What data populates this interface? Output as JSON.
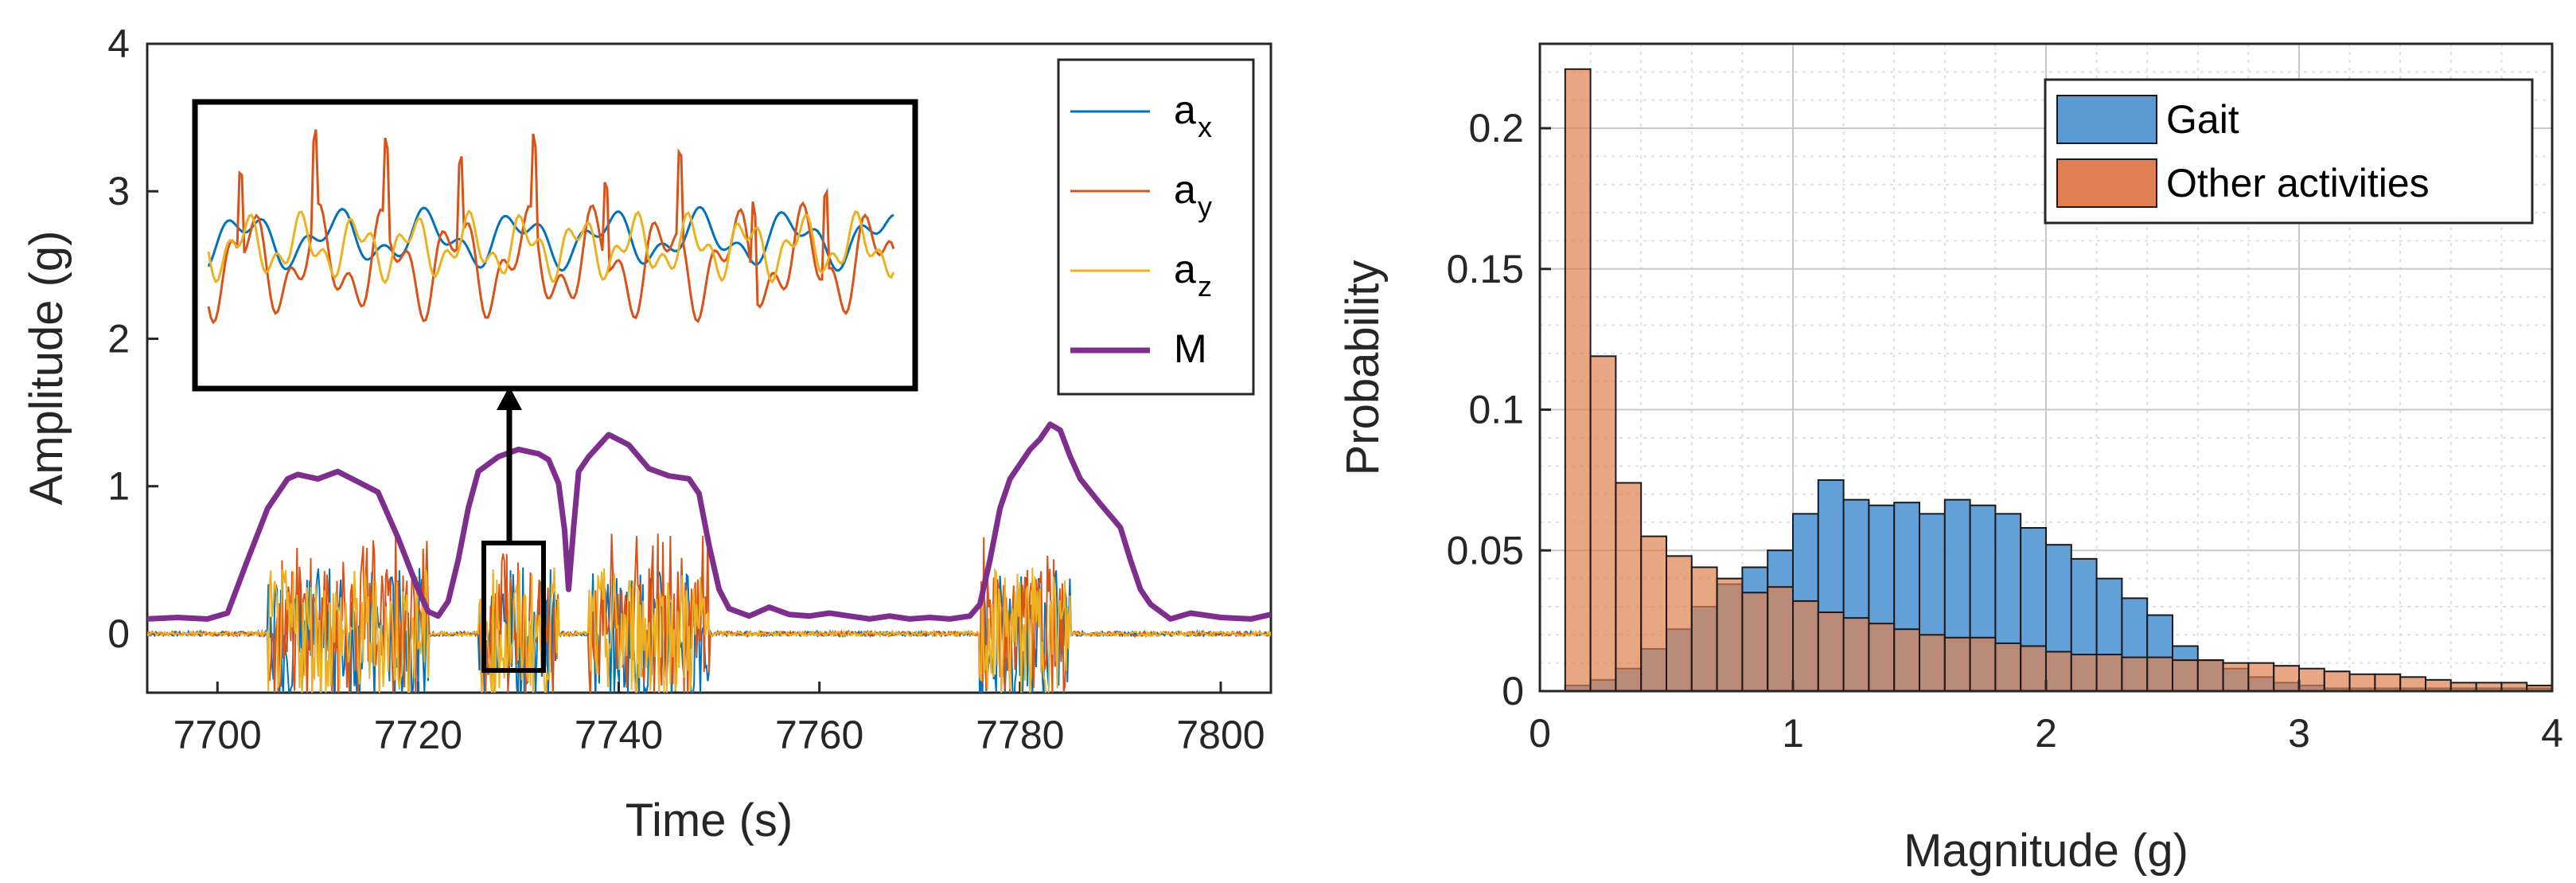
{
  "chart_data": [
    {
      "type": "line",
      "xlabel": "Time (s)",
      "ylabel": "Amplitude (g)",
      "xlim": [
        7693,
        7805
      ],
      "ylim": [
        -0.4,
        4
      ],
      "xticks": [
        7700,
        7720,
        7740,
        7760,
        7780,
        7800
      ],
      "yticks": [
        0,
        1,
        2,
        3,
        4
      ],
      "legend_position": "top-right",
      "series": [
        {
          "name": "a",
          "sub": "x",
          "color": "#0072BD"
        },
        {
          "name": "a",
          "sub": "y",
          "color": "#D95319"
        },
        {
          "name": "a",
          "sub": "z",
          "color": "#EDB120"
        },
        {
          "name": "M",
          "sub": "",
          "color": "#7E2F8E",
          "x": [
            7693,
            7696,
            7699,
            7701,
            7703,
            7705,
            7707,
            7708,
            7710,
            7712,
            7714,
            7716,
            7718,
            7720,
            7721,
            7722,
            7723,
            7724,
            7725,
            7726,
            7728,
            7730,
            7732,
            7733,
            7734,
            7734.6,
            7735,
            7735.5,
            7736,
            7737,
            7739,
            7741,
            7743,
            7745,
            7747,
            7748,
            7749,
            7750,
            7751,
            7753,
            7755,
            7757,
            7759,
            7761,
            7763,
            7765,
            7767,
            7769,
            7771,
            7773,
            7775,
            7776,
            7777,
            7778,
            7779,
            7780,
            7781,
            7782,
            7783,
            7784,
            7785,
            7786,
            7788,
            7790,
            7791,
            7792,
            7793,
            7795,
            7797,
            7800,
            7803,
            7805
          ],
          "values": [
            0.1,
            0.11,
            0.1,
            0.14,
            0.5,
            0.85,
            1.05,
            1.08,
            1.05,
            1.1,
            1.03,
            0.96,
            0.65,
            0.3,
            0.15,
            0.12,
            0.22,
            0.5,
            0.85,
            1.1,
            1.2,
            1.25,
            1.22,
            1.18,
            1.02,
            0.7,
            0.3,
            0.72,
            1.1,
            1.2,
            1.35,
            1.28,
            1.12,
            1.07,
            1.05,
            0.95,
            0.6,
            0.3,
            0.17,
            0.12,
            0.18,
            0.13,
            0.12,
            0.14,
            0.12,
            0.1,
            0.12,
            0.1,
            0.11,
            0.1,
            0.12,
            0.2,
            0.5,
            0.85,
            1.05,
            1.15,
            1.25,
            1.32,
            1.42,
            1.38,
            1.2,
            1.05,
            0.88,
            0.72,
            0.5,
            0.3,
            0.2,
            0.1,
            0.14,
            0.11,
            0.1,
            0.13
          ]
        }
      ],
      "activity_bursts": [
        [
          7705,
          7721
        ],
        [
          7726,
          7734
        ],
        [
          7737,
          7749
        ],
        [
          7776,
          7785
        ]
      ]
    },
    {
      "type": "bar",
      "xlabel": "Magnitude (g)",
      "ylabel": "Probability",
      "xlim": [
        0,
        4
      ],
      "ylim": [
        0,
        0.23
      ],
      "xticks": [
        0,
        1,
        2,
        3,
        4
      ],
      "yticks": [
        0,
        0.05,
        0.1,
        0.15,
        0.2
      ],
      "ytick_labels": [
        "0",
        "0.05",
        "0.1",
        "0.15",
        "0.2"
      ],
      "grid": true,
      "legend_position": "top-right",
      "bin_edges_start": 0.1,
      "bin_width": 0.1,
      "series": [
        {
          "name": "Gait",
          "color": "#5B9BD5",
          "values": [
            0.002,
            0.004,
            0.008,
            0.015,
            0.022,
            0.03,
            0.038,
            0.044,
            0.05,
            0.063,
            0.075,
            0.068,
            0.066,
            0.067,
            0.063,
            0.068,
            0.066,
            0.063,
            0.058,
            0.052,
            0.047,
            0.04,
            0.033,
            0.027,
            0.016,
            0.011,
            0.008,
            0.005,
            0.003,
            0.002,
            0.001,
            0.001,
            0.001,
            0.001,
            0.001,
            0.001,
            0.001,
            0.001,
            0.001
          ]
        },
        {
          "name": "Other activities",
          "color": "#E08050",
          "values": [
            0.221,
            0.119,
            0.074,
            0.055,
            0.048,
            0.044,
            0.04,
            0.035,
            0.037,
            0.032,
            0.028,
            0.026,
            0.024,
            0.022,
            0.02,
            0.019,
            0.019,
            0.017,
            0.016,
            0.014,
            0.013,
            0.013,
            0.012,
            0.012,
            0.011,
            0.011,
            0.01,
            0.01,
            0.009,
            0.008,
            0.007,
            0.006,
            0.006,
            0.005,
            0.004,
            0.003,
            0.003,
            0.003,
            0.002
          ]
        }
      ]
    }
  ]
}
